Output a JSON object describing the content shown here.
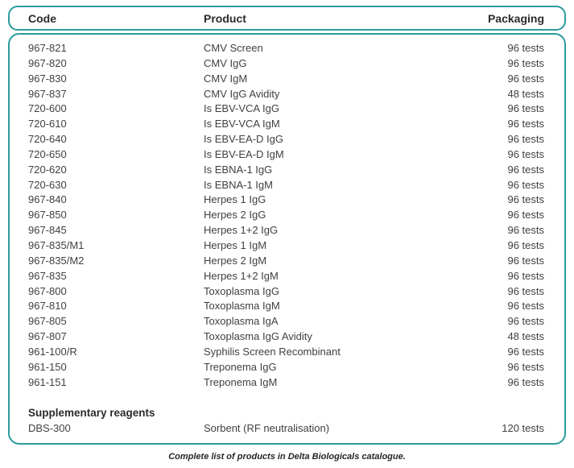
{
  "colors": {
    "accent_teal": "#2B9C9E",
    "body_text": "#414042",
    "heading_text": "#2B2B2B"
  },
  "table": {
    "columns": [
      "Code",
      "Product",
      "Packaging"
    ],
    "rows": [
      {
        "code": "967-821",
        "product": "CMV Screen",
        "packaging": "96 tests"
      },
      {
        "code": "967-820",
        "product": "CMV IgG",
        "packaging": "96 tests"
      },
      {
        "code": "967-830",
        "product": "CMV IgM",
        "packaging": "96 tests"
      },
      {
        "code": "967-837",
        "product": "CMV IgG Avidity",
        "packaging": "48 tests"
      },
      {
        "code": "720-600",
        "product": "Is EBV-VCA IgG",
        "packaging": "96 tests"
      },
      {
        "code": "720-610",
        "product": "Is EBV-VCA IgM",
        "packaging": "96 tests"
      },
      {
        "code": "720-640",
        "product": "Is EBV-EA-D IgG",
        "packaging": "96 tests"
      },
      {
        "code": "720-650",
        "product": "Is EBV-EA-D IgM",
        "packaging": "96 tests"
      },
      {
        "code": "720-620",
        "product": "Is EBNA-1 IgG",
        "packaging": "96 tests"
      },
      {
        "code": "720-630",
        "product": "Is EBNA-1 IgM",
        "packaging": "96 tests"
      },
      {
        "code": "967-840",
        "product": "Herpes 1 IgG",
        "packaging": "96 tests"
      },
      {
        "code": "967-850",
        "product": "Herpes 2 IgG",
        "packaging": "96 tests"
      },
      {
        "code": "967-845",
        "product": "Herpes 1+2 IgG",
        "packaging": "96 tests"
      },
      {
        "code": "967-835/M1",
        "product": "Herpes 1 IgM",
        "packaging": "96 tests"
      },
      {
        "code": "967-835/M2",
        "product": "Herpes 2 IgM",
        "packaging": "96 tests"
      },
      {
        "code": "967-835",
        "product": "Herpes 1+2 IgM",
        "packaging": "96 tests"
      },
      {
        "code": "967-800",
        "product": "Toxoplasma IgG",
        "packaging": "96 tests"
      },
      {
        "code": "967-810",
        "product": "Toxoplasma IgM",
        "packaging": "96 tests"
      },
      {
        "code": "967-805",
        "product": "Toxoplasma IgA",
        "packaging": "96 tests"
      },
      {
        "code": "967-807",
        "product": "Toxoplasma IgG Avidity",
        "packaging": "48 tests"
      },
      {
        "code": "961-100/R",
        "product": "Syphilis Screen Recombinant",
        "packaging": "96 tests"
      },
      {
        "code": "961-150",
        "product": "Treponema IgG",
        "packaging": "96 tests"
      },
      {
        "code": "961-151",
        "product": "Treponema IgM",
        "packaging": "96 tests"
      }
    ],
    "supplementary": {
      "heading": "Supplementary reagents",
      "rows": [
        {
          "code": "DBS-300",
          "product": "Sorbent (RF neutralisation)",
          "packaging": "120 tests"
        }
      ]
    },
    "caption": "Complete list of products in Delta Biologicals catalogue."
  }
}
